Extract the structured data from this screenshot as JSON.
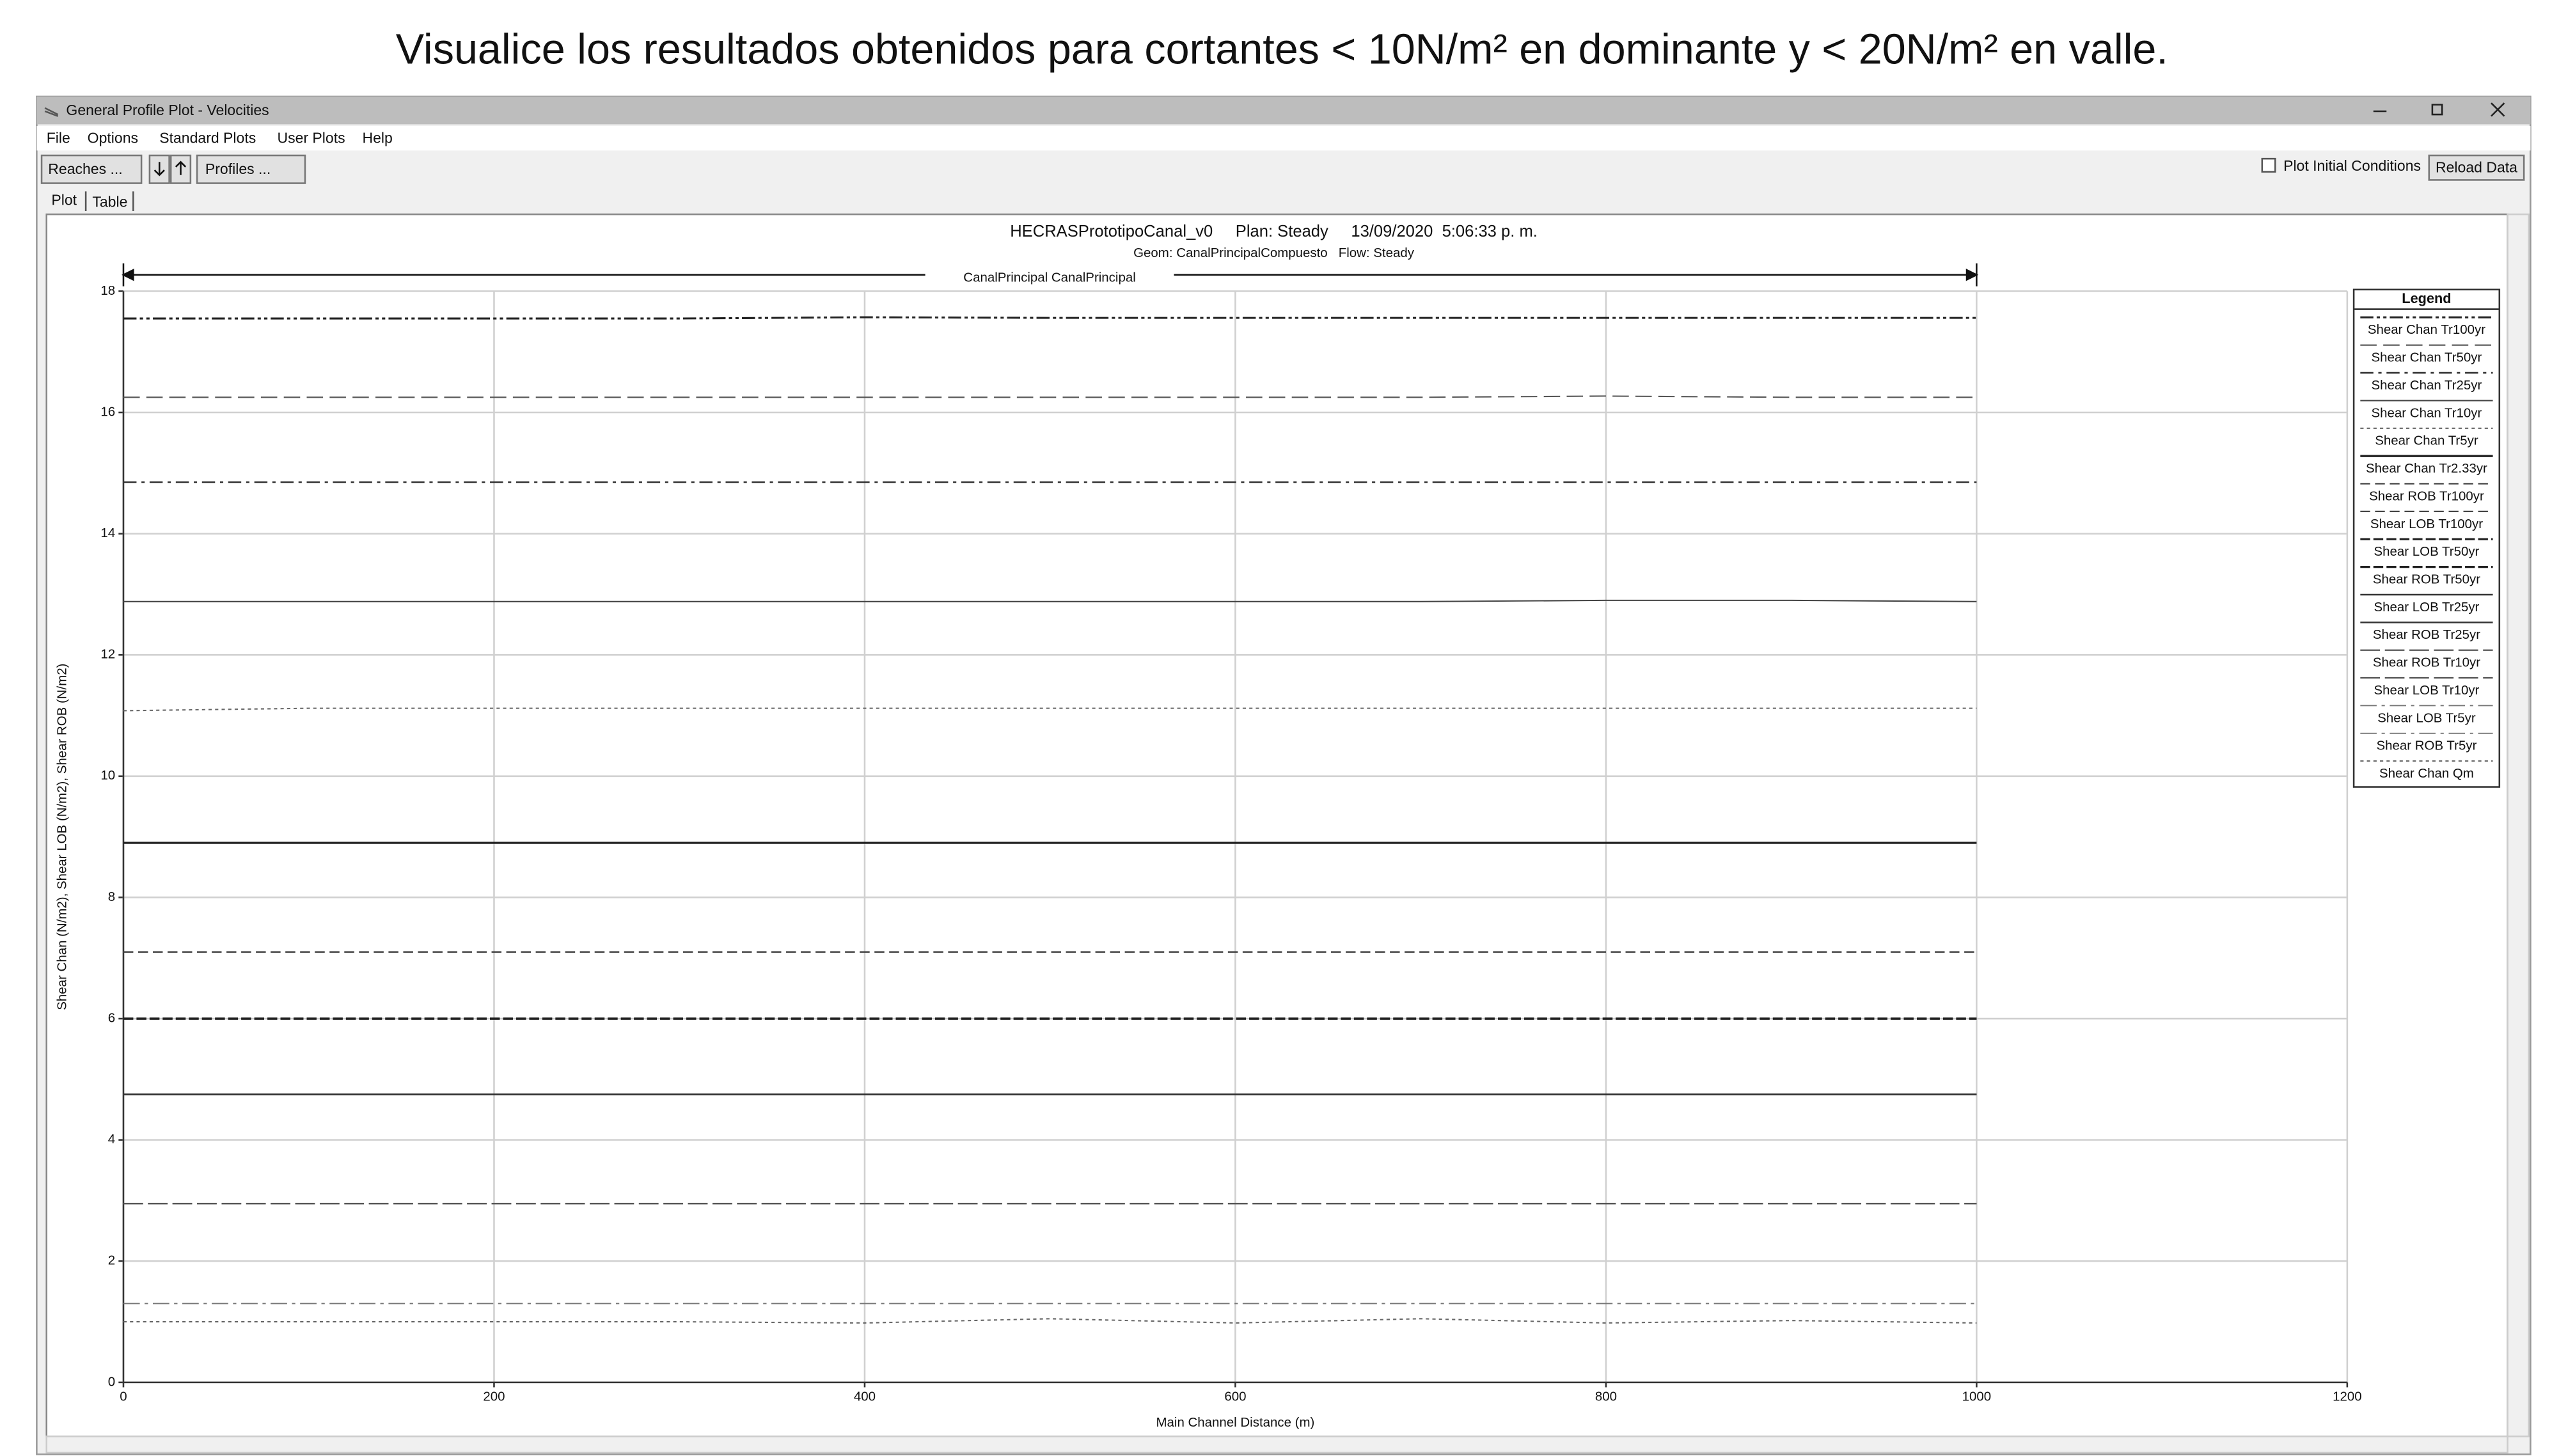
{
  "heading": "Visualice los resultados obtenidos para cortantes < 10N/m² en dominante y < 20N/m² en valle.",
  "window": {
    "title": "General Profile Plot - Velocities",
    "menu": [
      "File",
      "Options",
      "Standard Plots",
      "User Plots",
      "Help"
    ],
    "toolbar": {
      "reaches": "Reaches ...",
      "profiles": "Profiles ...",
      "plot_initial_conditions": "Plot Initial Conditions",
      "reload_data": "Reload Data"
    },
    "tabs": [
      "Plot",
      "Table"
    ]
  },
  "chart_data": {
    "type": "line",
    "title": "HECRASPrototipoCanal_v0     Plan: Steady     13/09/2020  5:06:33 p. m.",
    "subtitle": "Geom: CanalPrincipalCompuesto   Flow: Steady",
    "annotation": "CanalPrincipal CanalPrincipal",
    "x_label": "Main Channel Distance (m)",
    "y_label": "Shear Chan (N/m2), Shear LOB (N/m2), Shear ROB (N/m2)",
    "legend_title": "Legend",
    "legend": "right",
    "grid": true,
    "xlim": [
      0,
      1200
    ],
    "xticks": [
      0,
      200,
      400,
      600,
      800,
      1000,
      1200
    ],
    "ylim": [
      0,
      18
    ],
    "yticks": [
      0,
      2,
      4,
      6,
      8,
      10,
      12,
      14,
      16,
      18
    ],
    "x": [
      0,
      100,
      200,
      300,
      400,
      500,
      600,
      700,
      800,
      900,
      1000
    ],
    "series": [
      {
        "name": "Shear Chan Tr100yr",
        "color": "#222222",
        "values": [
          17.55,
          17.55,
          17.55,
          17.55,
          17.57,
          17.56,
          17.56,
          17.56,
          17.56,
          17.56,
          17.56
        ]
      },
      {
        "name": "Shear Chan Tr50yr",
        "color": "#555555",
        "values": [
          16.25,
          16.25,
          16.25,
          16.25,
          16.25,
          16.25,
          16.25,
          16.25,
          16.27,
          16.25,
          16.25
        ]
      },
      {
        "name": "Shear Chan Tr25yr",
        "color": "#333333",
        "values": [
          14.85,
          14.85,
          14.85,
          14.85,
          14.85,
          14.85,
          14.85,
          14.85,
          14.85,
          14.85,
          14.85
        ]
      },
      {
        "name": "Shear Chan Tr10yr",
        "color": "#444444",
        "values": [
          12.88,
          12.88,
          12.88,
          12.88,
          12.88,
          12.88,
          12.88,
          12.88,
          12.9,
          12.9,
          12.88
        ]
      },
      {
        "name": "Shear Chan Tr5yr",
        "color": "#666666",
        "values": [
          11.08,
          11.12,
          11.12,
          11.12,
          11.12,
          11.12,
          11.12,
          11.12,
          11.12,
          11.12,
          11.12
        ]
      },
      {
        "name": "Shear Chan Tr2.33yr",
        "color": "#222222",
        "values": [
          8.9,
          8.9,
          8.9,
          8.9,
          8.9,
          8.9,
          8.9,
          8.9,
          8.9,
          8.9,
          8.9
        ]
      },
      {
        "name": "Shear ROB Tr100yr",
        "color": "#444444",
        "values": [
          7.1,
          7.1,
          7.1,
          7.1,
          7.1,
          7.1,
          7.1,
          7.1,
          7.1,
          7.1,
          7.1
        ]
      },
      {
        "name": "Shear LOB Tr100yr",
        "color": "#444444",
        "values": [
          7.1,
          7.1,
          7.1,
          7.1,
          7.1,
          7.1,
          7.1,
          7.1,
          7.1,
          7.1,
          7.1
        ]
      },
      {
        "name": "Shear LOB Tr50yr",
        "color": "#222222",
        "values": [
          6.0,
          6.0,
          6.0,
          6.0,
          6.0,
          6.0,
          6.0,
          6.0,
          6.0,
          6.0,
          6.0
        ]
      },
      {
        "name": "Shear ROB Tr50yr",
        "color": "#222222",
        "values": [
          6.0,
          6.0,
          6.0,
          6.0,
          6.0,
          6.0,
          6.0,
          6.0,
          6.0,
          6.0,
          6.0
        ]
      },
      {
        "name": "Shear LOB Tr25yr",
        "color": "#333333",
        "values": [
          4.75,
          4.75,
          4.75,
          4.75,
          4.75,
          4.75,
          4.75,
          4.75,
          4.75,
          4.75,
          4.75
        ]
      },
      {
        "name": "Shear ROB Tr25yr",
        "color": "#333333",
        "values": [
          4.75,
          4.75,
          4.75,
          4.75,
          4.75,
          4.75,
          4.75,
          4.75,
          4.75,
          4.75,
          4.75
        ]
      },
      {
        "name": "Shear ROB Tr10yr",
        "color": "#555555",
        "values": [
          2.95,
          2.95,
          2.95,
          2.95,
          2.95,
          2.95,
          2.95,
          2.95,
          2.95,
          2.95,
          2.95
        ]
      },
      {
        "name": "Shear LOB Tr10yr",
        "color": "#555555",
        "values": [
          2.95,
          2.95,
          2.95,
          2.95,
          2.95,
          2.95,
          2.95,
          2.95,
          2.95,
          2.95,
          2.95
        ]
      },
      {
        "name": "Shear LOB Tr5yr",
        "color": "#777777",
        "values": [
          1.3,
          1.3,
          1.3,
          1.3,
          1.3,
          1.3,
          1.3,
          1.3,
          1.3,
          1.3,
          1.3
        ]
      },
      {
        "name": "Shear ROB Tr5yr",
        "color": "#777777",
        "values": [
          1.3,
          1.3,
          1.3,
          1.3,
          1.3,
          1.3,
          1.3,
          1.3,
          1.3,
          1.3,
          1.3
        ]
      },
      {
        "name": "Shear Chan Qm",
        "color": "#666666",
        "values": [
          1.0,
          1.0,
          1.0,
          1.0,
          0.98,
          1.05,
          0.98,
          1.05,
          0.98,
          1.02,
          0.98
        ]
      }
    ]
  }
}
